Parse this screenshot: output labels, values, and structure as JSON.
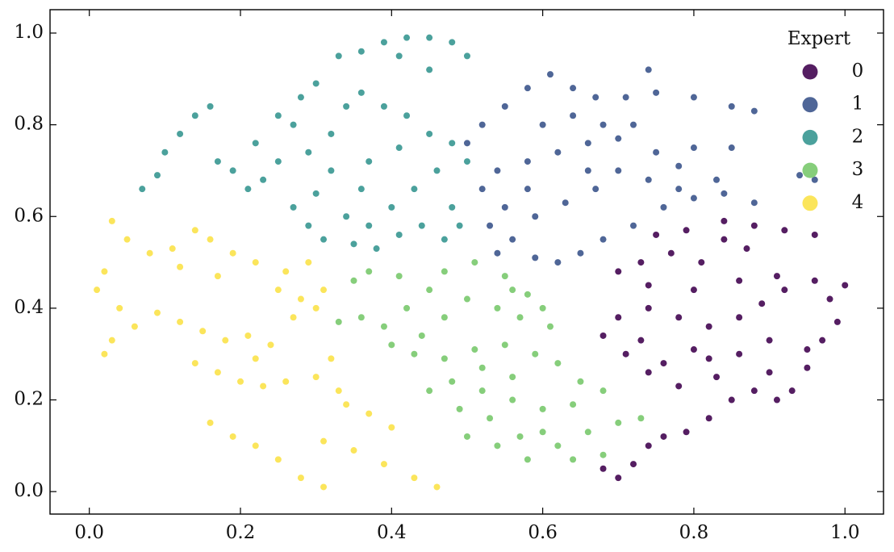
{
  "chart_data": {
    "type": "scatter",
    "legend_title": "Expert",
    "legend": "upper right",
    "xlim": [
      -0.052,
      1.051
    ],
    "ylim": [
      -0.049,
      1.051
    ],
    "xticks": [
      {
        "value": 0,
        "label": "0.0"
      },
      0.2,
      0.4,
      0.6,
      0.8,
      {
        "value": 1,
        "label": "1.0"
      }
    ],
    "yticks": [
      {
        "value": 0,
        "label": "0.0"
      },
      0.2,
      0.4,
      0.6,
      0.8,
      {
        "value": 1,
        "label": "1.0"
      }
    ],
    "series": [
      {
        "name": "0",
        "color": "#551e62",
        "x": [
          0.7,
          0.68,
          0.72,
          0.74,
          0.76,
          0.79,
          0.82,
          0.85,
          0.88,
          0.91,
          0.93,
          0.95,
          0.97,
          0.99,
          0.95,
          0.9,
          0.86,
          0.83,
          0.78,
          0.74,
          0.71,
          0.68,
          0.7,
          0.74,
          0.78,
          0.82,
          0.86,
          0.89,
          0.92,
          0.96,
          0.98,
          0.91,
          0.86,
          0.8,
          0.74,
          0.7,
          0.73,
          0.77,
          0.81,
          0.84,
          0.79,
          0.75,
          0.84,
          0.88,
          0.92,
          0.96,
          1.0,
          0.87,
          0.8,
          0.73,
          0.76,
          0.9,
          0.82
        ],
        "values": [
          0.03,
          0.05,
          0.06,
          0.1,
          0.12,
          0.13,
          0.16,
          0.2,
          0.22,
          0.2,
          0.22,
          0.27,
          0.33,
          0.37,
          0.31,
          0.33,
          0.3,
          0.25,
          0.23,
          0.26,
          0.3,
          0.34,
          0.38,
          0.4,
          0.38,
          0.36,
          0.38,
          0.41,
          0.44,
          0.46,
          0.42,
          0.47,
          0.46,
          0.44,
          0.45,
          0.48,
          0.5,
          0.52,
          0.5,
          0.55,
          0.57,
          0.56,
          0.59,
          0.58,
          0.57,
          0.56,
          0.45,
          0.53,
          0.31,
          0.33,
          0.28,
          0.26,
          0.29
        ]
      },
      {
        "name": "1",
        "color": "#4f6697",
        "x": [
          0.54,
          0.56,
          0.59,
          0.62,
          0.65,
          0.68,
          0.72,
          0.76,
          0.8,
          0.84,
          0.88,
          0.83,
          0.78,
          0.74,
          0.7,
          0.67,
          0.63,
          0.59,
          0.55,
          0.52,
          0.54,
          0.58,
          0.62,
          0.66,
          0.7,
          0.75,
          0.8,
          0.85,
          0.94,
          0.96,
          0.5,
          0.52,
          0.55,
          0.58,
          0.61,
          0.64,
          0.67,
          0.71,
          0.75,
          0.8,
          0.85,
          0.88,
          0.74,
          0.6,
          0.64,
          0.68,
          0.72,
          0.78,
          0.66,
          0.58,
          0.53
        ],
        "values": [
          0.52,
          0.55,
          0.51,
          0.5,
          0.52,
          0.55,
          0.58,
          0.62,
          0.64,
          0.65,
          0.63,
          0.68,
          0.66,
          0.68,
          0.7,
          0.66,
          0.63,
          0.6,
          0.62,
          0.66,
          0.7,
          0.72,
          0.74,
          0.76,
          0.77,
          0.74,
          0.75,
          0.75,
          0.69,
          0.68,
          0.76,
          0.8,
          0.84,
          0.88,
          0.91,
          0.88,
          0.86,
          0.86,
          0.87,
          0.86,
          0.84,
          0.83,
          0.92,
          0.8,
          0.82,
          0.8,
          0.8,
          0.71,
          0.7,
          0.66,
          0.58
        ]
      },
      {
        "name": "2",
        "color": "#4ba19c",
        "x": [
          0.07,
          0.09,
          0.1,
          0.12,
          0.14,
          0.16,
          0.17,
          0.19,
          0.21,
          0.23,
          0.25,
          0.22,
          0.25,
          0.28,
          0.3,
          0.27,
          0.29,
          0.27,
          0.29,
          0.31,
          0.3,
          0.32,
          0.32,
          0.34,
          0.36,
          0.39,
          0.42,
          0.45,
          0.48,
          0.5,
          0.46,
          0.43,
          0.4,
          0.37,
          0.35,
          0.38,
          0.41,
          0.44,
          0.47,
          0.49,
          0.48,
          0.36,
          0.34,
          0.33,
          0.36,
          0.39,
          0.42,
          0.45,
          0.48,
          0.5,
          0.41,
          0.45,
          0.41,
          0.37
        ],
        "values": [
          0.66,
          0.69,
          0.74,
          0.78,
          0.82,
          0.84,
          0.72,
          0.7,
          0.66,
          0.68,
          0.72,
          0.76,
          0.82,
          0.86,
          0.89,
          0.8,
          0.74,
          0.62,
          0.58,
          0.55,
          0.65,
          0.7,
          0.78,
          0.84,
          0.87,
          0.84,
          0.82,
          0.78,
          0.76,
          0.72,
          0.7,
          0.66,
          0.62,
          0.58,
          0.54,
          0.53,
          0.56,
          0.58,
          0.55,
          0.58,
          0.62,
          0.66,
          0.6,
          0.95,
          0.96,
          0.98,
          0.99,
          0.99,
          0.98,
          0.95,
          0.95,
          0.92,
          0.75,
          0.72
        ]
      },
      {
        "name": "3",
        "color": "#86ce7b",
        "x": [
          0.33,
          0.36,
          0.39,
          0.42,
          0.45,
          0.47,
          0.51,
          0.55,
          0.58,
          0.6,
          0.57,
          0.54,
          0.5,
          0.47,
          0.44,
          0.4,
          0.37,
          0.35,
          0.41,
          0.43,
          0.47,
          0.51,
          0.55,
          0.59,
          0.62,
          0.65,
          0.68,
          0.64,
          0.6,
          0.56,
          0.52,
          0.48,
          0.45,
          0.49,
          0.53,
          0.57,
          0.54,
          0.5,
          0.58,
          0.62,
          0.66,
          0.7,
          0.73,
          0.68,
          0.64,
          0.6,
          0.56,
          0.52,
          0.61,
          0.56
        ],
        "values": [
          0.37,
          0.38,
          0.36,
          0.4,
          0.44,
          0.48,
          0.5,
          0.47,
          0.43,
          0.4,
          0.38,
          0.4,
          0.42,
          0.38,
          0.34,
          0.32,
          0.48,
          0.46,
          0.47,
          0.3,
          0.29,
          0.31,
          0.32,
          0.3,
          0.28,
          0.24,
          0.22,
          0.19,
          0.18,
          0.2,
          0.22,
          0.24,
          0.22,
          0.18,
          0.16,
          0.12,
          0.1,
          0.12,
          0.07,
          0.1,
          0.13,
          0.15,
          0.16,
          0.08,
          0.07,
          0.13,
          0.25,
          0.27,
          0.36,
          0.44
        ]
      },
      {
        "name": "4",
        "color": "#fbe55b",
        "x": [
          0.03,
          0.05,
          0.02,
          0.01,
          0.04,
          0.03,
          0.02,
          0.06,
          0.09,
          0.12,
          0.15,
          0.18,
          0.21,
          0.24,
          0.08,
          0.11,
          0.14,
          0.16,
          0.19,
          0.22,
          0.26,
          0.29,
          0.12,
          0.17,
          0.25,
          0.28,
          0.3,
          0.31,
          0.27,
          0.14,
          0.17,
          0.2,
          0.23,
          0.26,
          0.3,
          0.32,
          0.33,
          0.34,
          0.37,
          0.4,
          0.16,
          0.19,
          0.22,
          0.25,
          0.28,
          0.31,
          0.31,
          0.35,
          0.39,
          0.43,
          0.46,
          0.22
        ],
        "values": [
          0.59,
          0.55,
          0.48,
          0.44,
          0.4,
          0.33,
          0.3,
          0.36,
          0.39,
          0.37,
          0.35,
          0.33,
          0.34,
          0.32,
          0.52,
          0.53,
          0.57,
          0.55,
          0.52,
          0.5,
          0.48,
          0.5,
          0.49,
          0.47,
          0.44,
          0.42,
          0.4,
          0.44,
          0.38,
          0.28,
          0.26,
          0.24,
          0.23,
          0.24,
          0.25,
          0.29,
          0.22,
          0.19,
          0.17,
          0.14,
          0.15,
          0.12,
          0.1,
          0.07,
          0.03,
          0.01,
          0.11,
          0.09,
          0.06,
          0.03,
          0.01,
          0.29
        ]
      }
    ]
  }
}
